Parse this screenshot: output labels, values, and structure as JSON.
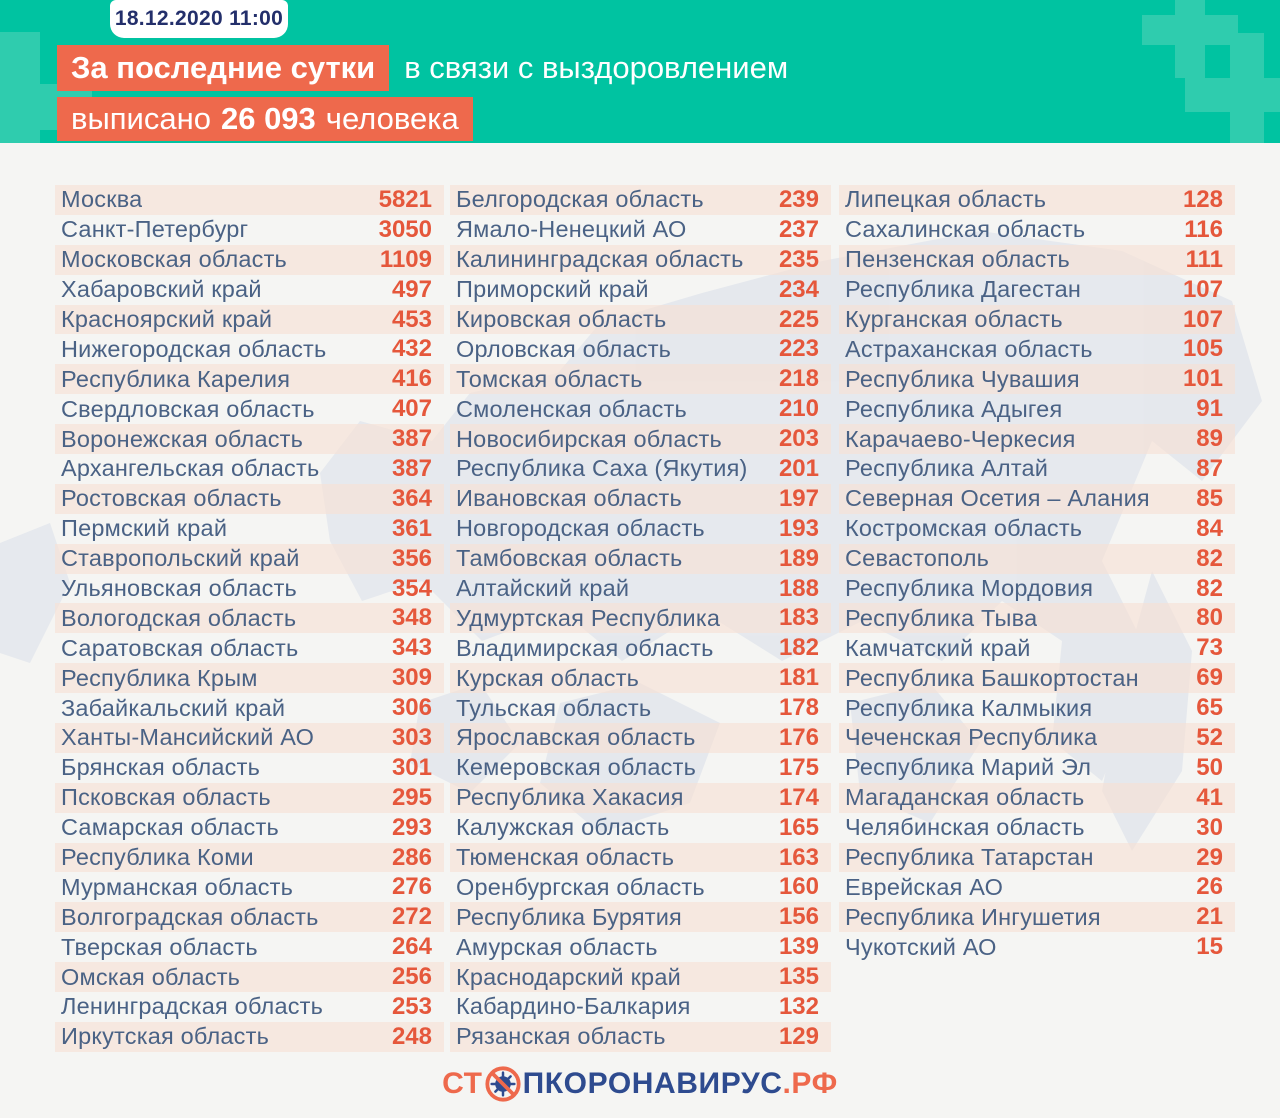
{
  "header": {
    "datetime": "18.12.2020 11:00",
    "line1_highlight": "За последние сутки",
    "line1_rest": "в связи с выздоровлением",
    "line2_prefix": "выписано",
    "line2_number": "26 093",
    "line2_suffix": "человека"
  },
  "footer": {
    "logo_part1": "СТ",
    "logo_part2": "ПКОРОНАВИРУС",
    "logo_part3": ".РФ"
  },
  "colors": {
    "teal": "#00C3A1",
    "teal_light_cross": "#2FCCAE",
    "orange_highlight": "#EE694C",
    "navy_date": "#232F6B",
    "region_text": "#4A6285",
    "value_text": "#E5573B",
    "stripe": "#F7E0D4",
    "background": "#F5F5F3",
    "map_fill": "#D9DEE9",
    "logo_navy": "#2E4B8F"
  },
  "chart_data": {
    "type": "table",
    "title": "За последние сутки в связи с выздоровлением выписано 26 093 человека",
    "date": "18.12.2020 11:00",
    "total_discharged": 26093,
    "unit": "выписанные за сутки по регионам",
    "columns": [
      {
        "rows": [
          {
            "region": "Москва",
            "value": 5821
          },
          {
            "region": "Санкт-Петербург",
            "value": 3050
          },
          {
            "region": "Московская область",
            "value": 1109
          },
          {
            "region": "Хабаровский край",
            "value": 497
          },
          {
            "region": "Красноярский край",
            "value": 453
          },
          {
            "region": "Нижегородская область",
            "value": 432
          },
          {
            "region": "Республика Карелия",
            "value": 416
          },
          {
            "region": "Свердловская область",
            "value": 407
          },
          {
            "region": "Воронежская область",
            "value": 387
          },
          {
            "region": "Архангельская область",
            "value": 387
          },
          {
            "region": "Ростовская область",
            "value": 364
          },
          {
            "region": "Пермский край",
            "value": 361
          },
          {
            "region": "Ставропольский край",
            "value": 356
          },
          {
            "region": "Ульяновская область",
            "value": 354
          },
          {
            "region": "Вологодская область",
            "value": 348
          },
          {
            "region": "Саратовская область",
            "value": 343
          },
          {
            "region": "Республика Крым",
            "value": 309
          },
          {
            "region": "Забайкальский край",
            "value": 306
          },
          {
            "region": "Ханты-Мансийский АО",
            "value": 303
          },
          {
            "region": "Брянская область",
            "value": 301
          },
          {
            "region": "Псковская область",
            "value": 295
          },
          {
            "region": "Самарская область",
            "value": 293
          },
          {
            "region": "Республика Коми",
            "value": 286
          },
          {
            "region": "Мурманская область",
            "value": 276
          },
          {
            "region": "Волгоградская область",
            "value": 272
          },
          {
            "region": "Тверская область",
            "value": 264
          },
          {
            "region": "Омская область",
            "value": 256
          },
          {
            "region": "Ленинградская область",
            "value": 253
          },
          {
            "region": "Иркутская область",
            "value": 248
          }
        ]
      },
      {
        "rows": [
          {
            "region": "Белгородская область",
            "value": 239
          },
          {
            "region": "Ямало-Ненецкий АО",
            "value": 237
          },
          {
            "region": "Калининградская область",
            "value": 235
          },
          {
            "region": "Приморский край",
            "value": 234
          },
          {
            "region": "Кировская область",
            "value": 225
          },
          {
            "region": "Орловская область",
            "value": 223
          },
          {
            "region": "Томская область",
            "value": 218
          },
          {
            "region": "Смоленская область",
            "value": 210
          },
          {
            "region": "Новосибирская область",
            "value": 203
          },
          {
            "region": "Республика Саха (Якутия)",
            "value": 201
          },
          {
            "region": "Ивановская область",
            "value": 197
          },
          {
            "region": "Новгородская область",
            "value": 193
          },
          {
            "region": "Тамбовская область",
            "value": 189
          },
          {
            "region": "Алтайский край",
            "value": 188
          },
          {
            "region": "Удмуртская Республика",
            "value": 183
          },
          {
            "region": "Владимирская область",
            "value": 182
          },
          {
            "region": "Курская область",
            "value": 181
          },
          {
            "region": "Тульская область",
            "value": 178
          },
          {
            "region": "Ярославская область",
            "value": 176
          },
          {
            "region": "Кемеровская область",
            "value": 175
          },
          {
            "region": "Республика Хакасия",
            "value": 174
          },
          {
            "region": "Калужская область",
            "value": 165
          },
          {
            "region": "Тюменская область",
            "value": 163
          },
          {
            "region": "Оренбургская область",
            "value": 160
          },
          {
            "region": "Республика Бурятия",
            "value": 156
          },
          {
            "region": "Амурская область",
            "value": 139
          },
          {
            "region": "Краснодарский край",
            "value": 135
          },
          {
            "region": "Кабардино-Балкария",
            "value": 132
          },
          {
            "region": "Рязанская область",
            "value": 129
          }
        ]
      },
      {
        "rows": [
          {
            "region": "Липецкая область",
            "value": 128
          },
          {
            "region": "Сахалинская область",
            "value": 116
          },
          {
            "region": "Пензенская область",
            "value": 111
          },
          {
            "region": "Республика Дагестан",
            "value": 107
          },
          {
            "region": "Курганская область",
            "value": 107
          },
          {
            "region": "Астраханская область",
            "value": 105
          },
          {
            "region": "Республика Чувашия",
            "value": 101
          },
          {
            "region": "Республика Адыгея",
            "value": 91
          },
          {
            "region": "Карачаево-Черкесия",
            "value": 89
          },
          {
            "region": "Республика Алтай",
            "value": 87
          },
          {
            "region": "Северная Осетия – Алания",
            "value": 85
          },
          {
            "region": "Костромская область",
            "value": 84
          },
          {
            "region": "Севастополь",
            "value": 82
          },
          {
            "region": "Республика Мордовия",
            "value": 82
          },
          {
            "region": "Республика Тыва",
            "value": 80
          },
          {
            "region": "Камчатский край",
            "value": 73
          },
          {
            "region": "Республика Башкортостан",
            "value": 69
          },
          {
            "region": "Республика Калмыкия",
            "value": 65
          },
          {
            "region": "Чеченская Республика",
            "value": 52
          },
          {
            "region": "Республика Марий Эл",
            "value": 50
          },
          {
            "region": "Магаданская область",
            "value": 41
          },
          {
            "region": "Челябинская область",
            "value": 30
          },
          {
            "region": "Республика Татарстан",
            "value": 29
          },
          {
            "region": "Еврейская АО",
            "value": 26
          },
          {
            "region": "Республика Ингушетия",
            "value": 21
          },
          {
            "region": "Чукотский АО",
            "value": 15
          }
        ]
      }
    ]
  }
}
